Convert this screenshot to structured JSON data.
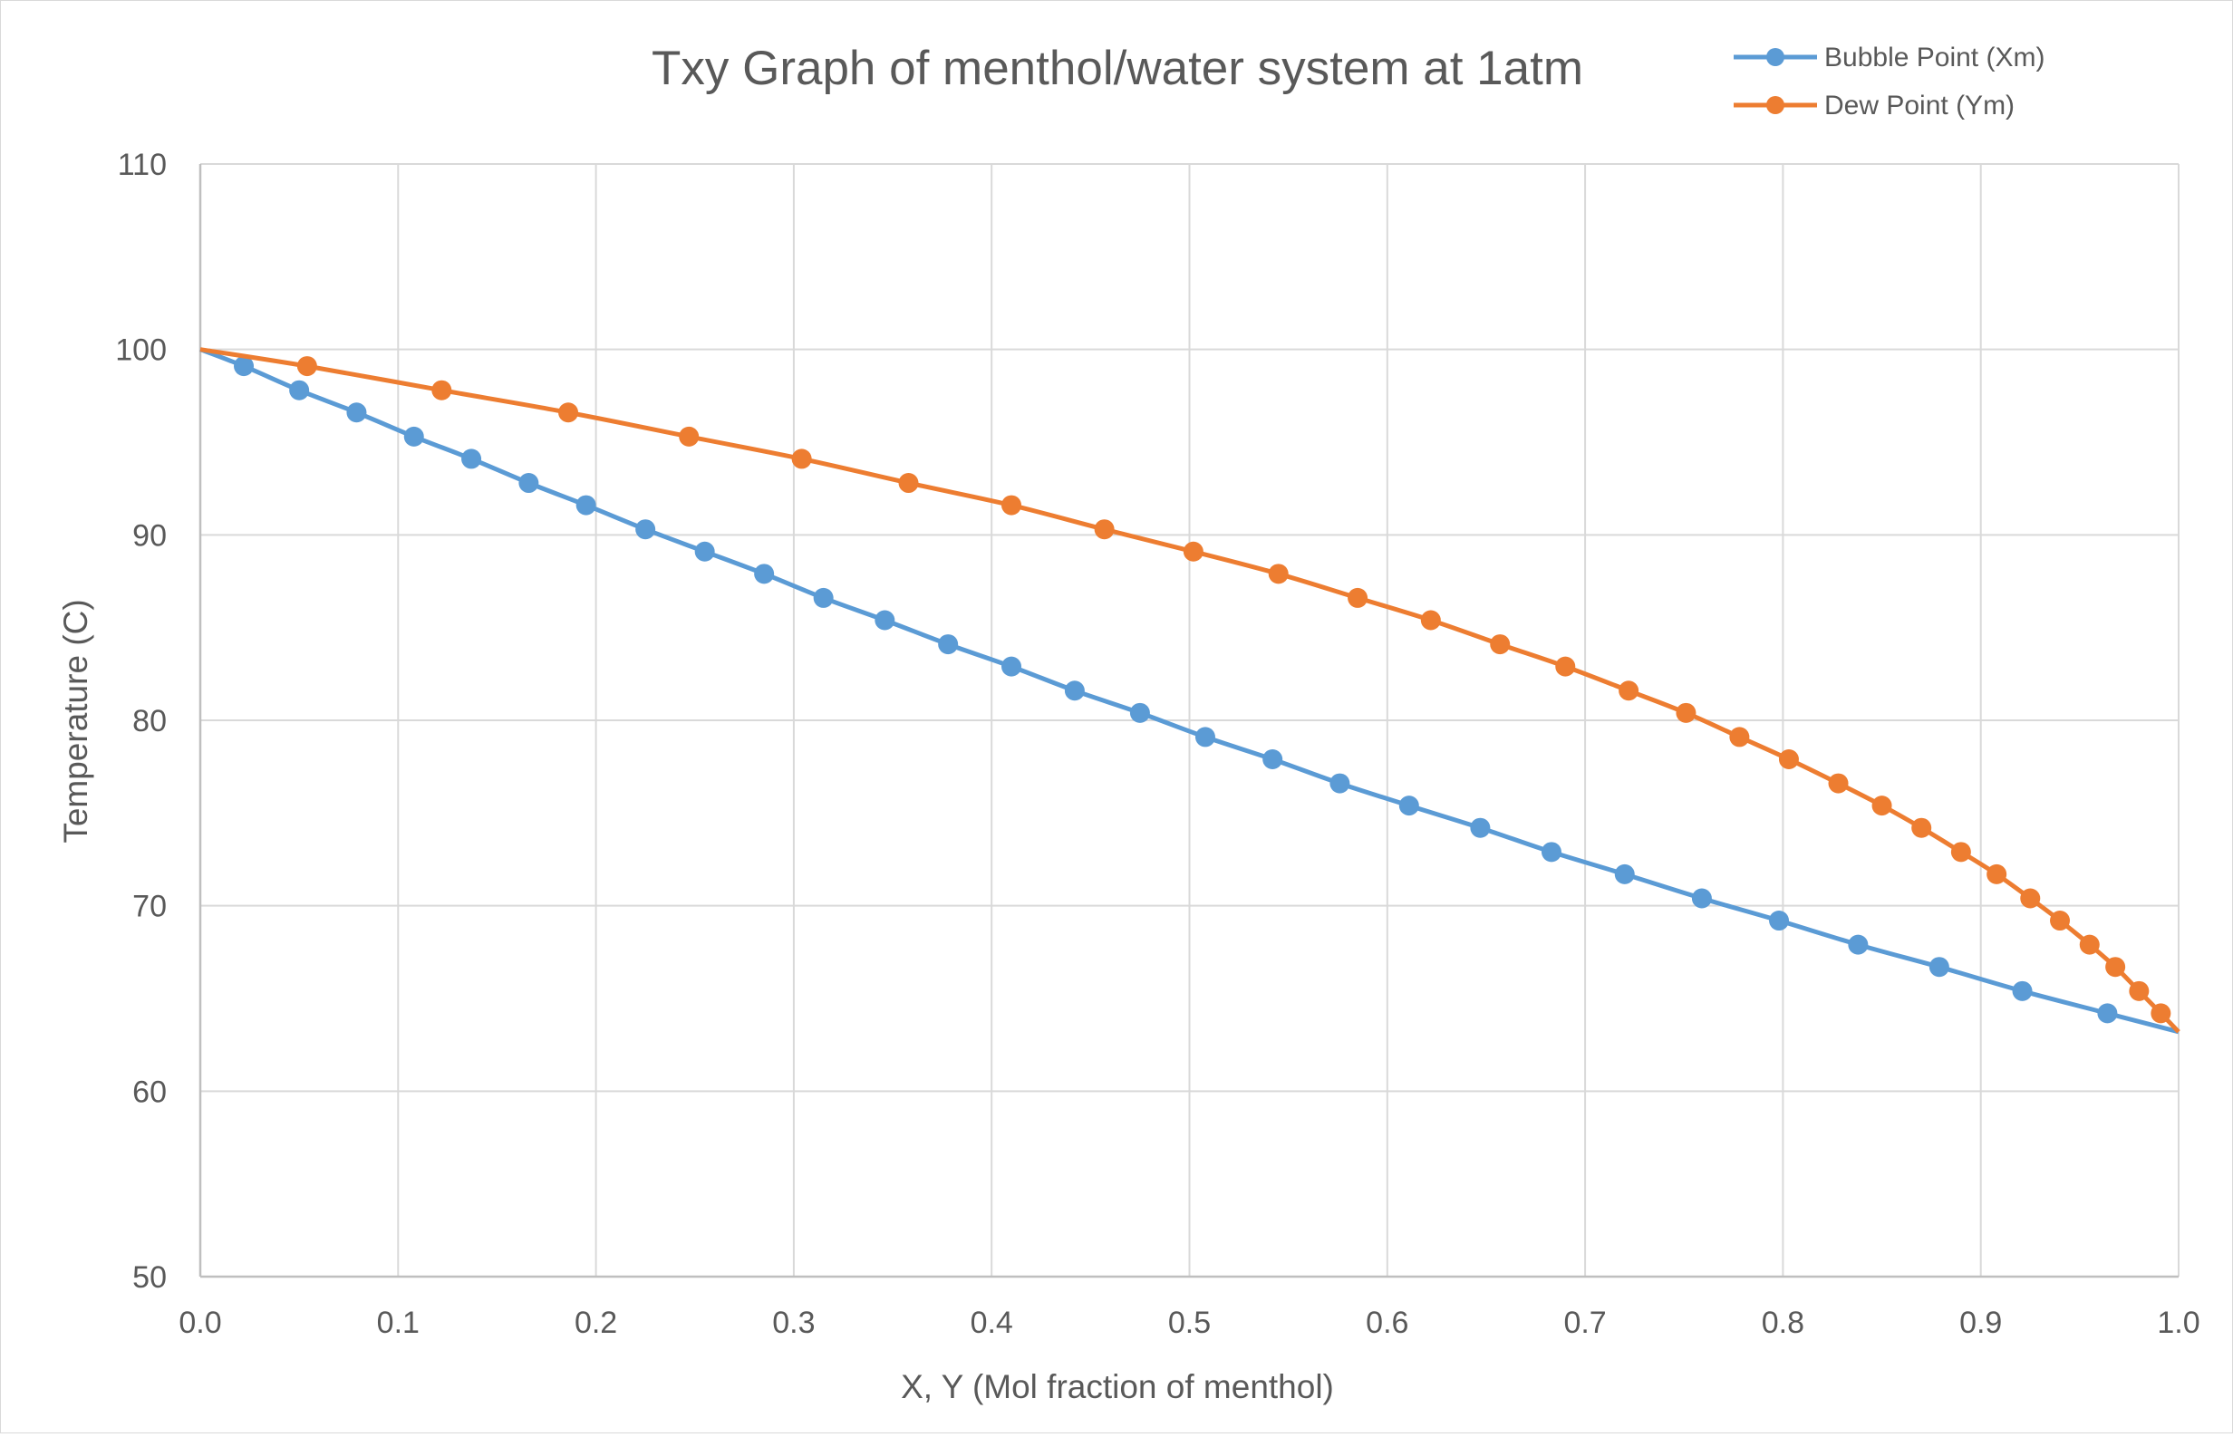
{
  "chart_data": {
    "type": "line",
    "title": "Txy Graph of menthol/water system at 1atm",
    "xlabel": "X, Y (Mol fraction of menthol)",
    "ylabel": "Temperature (C)",
    "xlim": [
      0,
      1
    ],
    "ylim": [
      50,
      110
    ],
    "xticks": [
      "0.0",
      "0.1",
      "0.2",
      "0.3",
      "0.4",
      "0.5",
      "0.6",
      "0.7",
      "0.8",
      "0.9",
      "1.0"
    ],
    "yticks": [
      "50",
      "60",
      "70",
      "80",
      "90",
      "100",
      "110"
    ],
    "grid": true,
    "legend_position": "top-right",
    "series": [
      {
        "name": "Bubble Point (Xm)",
        "color": "#5b9bd5",
        "points": [
          [
            0.022,
            99.1
          ],
          [
            0.05,
            97.8
          ],
          [
            0.079,
            96.6
          ],
          [
            0.108,
            95.3
          ],
          [
            0.137,
            94.1
          ],
          [
            0.166,
            92.8
          ],
          [
            0.195,
            91.6
          ],
          [
            0.225,
            90.3
          ],
          [
            0.255,
            89.1
          ],
          [
            0.285,
            87.9
          ],
          [
            0.315,
            86.6
          ],
          [
            0.346,
            85.4
          ],
          [
            0.378,
            84.1
          ],
          [
            0.41,
            82.9
          ],
          [
            0.442,
            81.6
          ],
          [
            0.475,
            80.4
          ],
          [
            0.508,
            79.1
          ],
          [
            0.542,
            77.9
          ],
          [
            0.576,
            76.6
          ],
          [
            0.611,
            75.4
          ],
          [
            0.647,
            74.2
          ],
          [
            0.683,
            72.9
          ],
          [
            0.72,
            71.7
          ],
          [
            0.759,
            70.4
          ],
          [
            0.798,
            69.2
          ],
          [
            0.838,
            67.9
          ],
          [
            0.879,
            66.7
          ],
          [
            0.921,
            65.4
          ],
          [
            0.964,
            64.2
          ]
        ]
      },
      {
        "name": "Dew Point (Ym)",
        "color": "#ed7d31",
        "points": [
          [
            0.054,
            99.1
          ],
          [
            0.122,
            97.8
          ],
          [
            0.186,
            96.6
          ],
          [
            0.247,
            95.3
          ],
          [
            0.304,
            94.1
          ],
          [
            0.358,
            92.8
          ],
          [
            0.41,
            91.6
          ],
          [
            0.457,
            90.3
          ],
          [
            0.502,
            89.1
          ],
          [
            0.545,
            87.9
          ],
          [
            0.585,
            86.6
          ],
          [
            0.622,
            85.4
          ],
          [
            0.657,
            84.1
          ],
          [
            0.69,
            82.9
          ],
          [
            0.722,
            81.6
          ],
          [
            0.751,
            80.4
          ],
          [
            0.778,
            79.1
          ],
          [
            0.803,
            77.9
          ],
          [
            0.828,
            76.6
          ],
          [
            0.85,
            75.4
          ],
          [
            0.87,
            74.2
          ],
          [
            0.89,
            72.9
          ],
          [
            0.908,
            71.7
          ],
          [
            0.925,
            70.4
          ],
          [
            0.94,
            69.2
          ],
          [
            0.955,
            67.9
          ],
          [
            0.968,
            66.7
          ],
          [
            0.98,
            65.4
          ],
          [
            0.991,
            64.2
          ]
        ]
      }
    ],
    "line_endpoints": {
      "start": [
        0,
        100
      ],
      "end": [
        1,
        63.2
      ]
    }
  }
}
